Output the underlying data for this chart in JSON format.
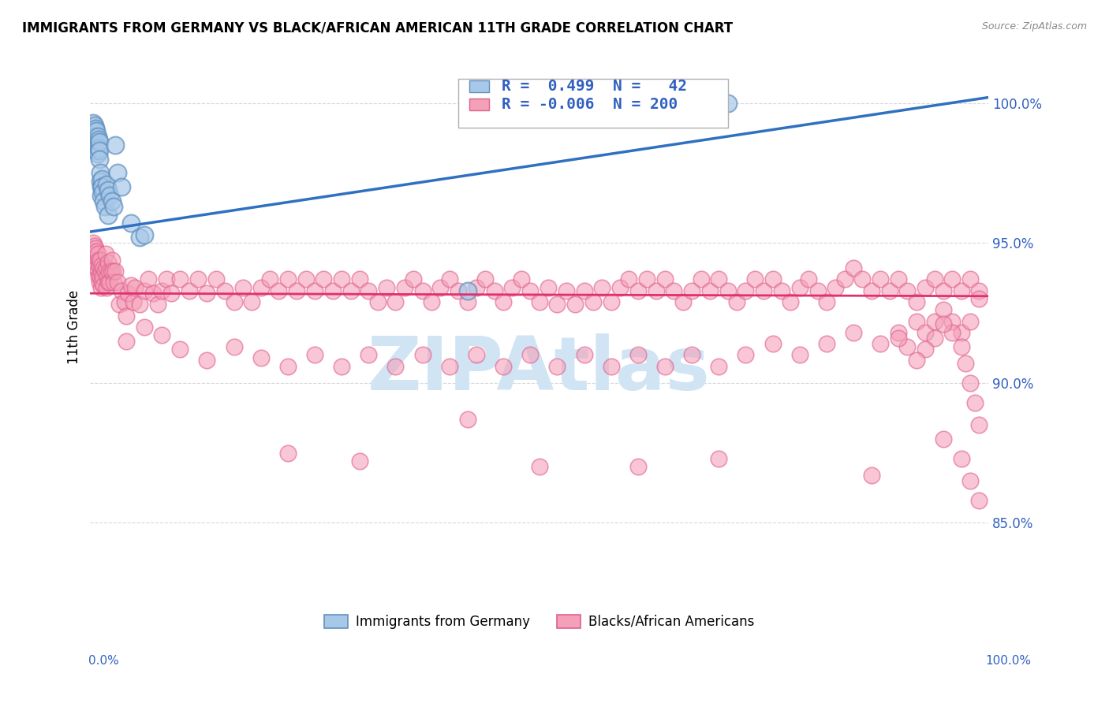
{
  "title": "IMMIGRANTS FROM GERMANY VS BLACK/AFRICAN AMERICAN 11TH GRADE CORRELATION CHART",
  "source": "Source: ZipAtlas.com",
  "ylabel": "11th Grade",
  "ytick_values": [
    0.85,
    0.9,
    0.95,
    1.0
  ],
  "ytick_labels": [
    "85.0%",
    "90.0%",
    "95.0%",
    "100.0%"
  ],
  "legend_blue_label": "Immigrants from Germany",
  "legend_pink_label": "Blacks/African Americans",
  "blue_color": "#a8c8e8",
  "pink_color": "#f4a0b8",
  "blue_edge_color": "#6090c0",
  "pink_edge_color": "#e06090",
  "trendline_blue_color": "#3070c0",
  "trendline_pink_color": "#e03070",
  "watermark_text": "ZIPAtlas",
  "watermark_color": "#d0e4f4",
  "blue_trend_x": [
    0.0,
    1.0
  ],
  "blue_trend_y": [
    0.954,
    1.002
  ],
  "pink_trend_y": [
    0.932,
    0.931
  ],
  "xlim": [
    0.0,
    1.0
  ],
  "ylim": [
    0.825,
    1.015
  ],
  "grid_color": "#d8d8d8",
  "right_label_color": "#3060c0",
  "blue_dots": [
    [
      0.003,
      0.993
    ],
    [
      0.004,
      0.99
    ],
    [
      0.004,
      0.986
    ],
    [
      0.005,
      0.992
    ],
    [
      0.005,
      0.988
    ],
    [
      0.005,
      0.985
    ],
    [
      0.006,
      0.991
    ],
    [
      0.006,
      0.988
    ],
    [
      0.007,
      0.99
    ],
    [
      0.007,
      0.986
    ],
    [
      0.007,
      0.983
    ],
    [
      0.008,
      0.988
    ],
    [
      0.008,
      0.985
    ],
    [
      0.008,
      0.982
    ],
    [
      0.009,
      0.987
    ],
    [
      0.009,
      0.984
    ],
    [
      0.01,
      0.986
    ],
    [
      0.01,
      0.983
    ],
    [
      0.01,
      0.98
    ],
    [
      0.011,
      0.975
    ],
    [
      0.011,
      0.972
    ],
    [
      0.012,
      0.97
    ],
    [
      0.012,
      0.967
    ],
    [
      0.013,
      0.973
    ],
    [
      0.013,
      0.97
    ],
    [
      0.014,
      0.968
    ],
    [
      0.015,
      0.965
    ],
    [
      0.016,
      0.963
    ],
    [
      0.018,
      0.971
    ],
    [
      0.02,
      0.969
    ],
    [
      0.02,
      0.96
    ],
    [
      0.022,
      0.967
    ],
    [
      0.024,
      0.965
    ],
    [
      0.026,
      0.963
    ],
    [
      0.028,
      0.985
    ],
    [
      0.03,
      0.975
    ],
    [
      0.035,
      0.97
    ],
    [
      0.045,
      0.957
    ],
    [
      0.055,
      0.952
    ],
    [
      0.06,
      0.953
    ],
    [
      0.42,
      0.933
    ],
    [
      0.71,
      1.0
    ]
  ],
  "pink_dots": [
    [
      0.003,
      0.95
    ],
    [
      0.004,
      0.946
    ],
    [
      0.005,
      0.949
    ],
    [
      0.005,
      0.944
    ],
    [
      0.006,
      0.948
    ],
    [
      0.006,
      0.942
    ],
    [
      0.007,
      0.947
    ],
    [
      0.007,
      0.941
    ],
    [
      0.008,
      0.946
    ],
    [
      0.008,
      0.94
    ],
    [
      0.009,
      0.944
    ],
    [
      0.009,
      0.938
    ],
    [
      0.01,
      0.942
    ],
    [
      0.01,
      0.936
    ],
    [
      0.011,
      0.944
    ],
    [
      0.011,
      0.938
    ],
    [
      0.012,
      0.94
    ],
    [
      0.012,
      0.934
    ],
    [
      0.013,
      0.942
    ],
    [
      0.013,
      0.936
    ],
    [
      0.014,
      0.938
    ],
    [
      0.015,
      0.941
    ],
    [
      0.015,
      0.935
    ],
    [
      0.016,
      0.94
    ],
    [
      0.017,
      0.946
    ],
    [
      0.018,
      0.941
    ],
    [
      0.018,
      0.934
    ],
    [
      0.019,
      0.938
    ],
    [
      0.02,
      0.943
    ],
    [
      0.02,
      0.936
    ],
    [
      0.021,
      0.94
    ],
    [
      0.022,
      0.936
    ],
    [
      0.023,
      0.94
    ],
    [
      0.024,
      0.944
    ],
    [
      0.025,
      0.94
    ],
    [
      0.026,
      0.936
    ],
    [
      0.028,
      0.94
    ],
    [
      0.03,
      0.936
    ],
    [
      0.032,
      0.928
    ],
    [
      0.035,
      0.933
    ],
    [
      0.038,
      0.929
    ],
    [
      0.04,
      0.924
    ],
    [
      0.042,
      0.932
    ],
    [
      0.045,
      0.935
    ],
    [
      0.048,
      0.929
    ],
    [
      0.05,
      0.934
    ],
    [
      0.055,
      0.928
    ],
    [
      0.06,
      0.933
    ],
    [
      0.065,
      0.937
    ],
    [
      0.07,
      0.932
    ],
    [
      0.075,
      0.928
    ],
    [
      0.08,
      0.933
    ],
    [
      0.085,
      0.937
    ],
    [
      0.09,
      0.932
    ],
    [
      0.1,
      0.937
    ],
    [
      0.11,
      0.933
    ],
    [
      0.12,
      0.937
    ],
    [
      0.13,
      0.932
    ],
    [
      0.14,
      0.937
    ],
    [
      0.15,
      0.933
    ],
    [
      0.16,
      0.929
    ],
    [
      0.17,
      0.934
    ],
    [
      0.18,
      0.929
    ],
    [
      0.19,
      0.934
    ],
    [
      0.2,
      0.937
    ],
    [
      0.21,
      0.933
    ],
    [
      0.22,
      0.937
    ],
    [
      0.23,
      0.933
    ],
    [
      0.24,
      0.937
    ],
    [
      0.25,
      0.933
    ],
    [
      0.26,
      0.937
    ],
    [
      0.27,
      0.933
    ],
    [
      0.28,
      0.937
    ],
    [
      0.29,
      0.933
    ],
    [
      0.3,
      0.937
    ],
    [
      0.31,
      0.933
    ],
    [
      0.32,
      0.929
    ],
    [
      0.33,
      0.934
    ],
    [
      0.34,
      0.929
    ],
    [
      0.35,
      0.934
    ],
    [
      0.36,
      0.937
    ],
    [
      0.37,
      0.933
    ],
    [
      0.38,
      0.929
    ],
    [
      0.39,
      0.934
    ],
    [
      0.4,
      0.937
    ],
    [
      0.41,
      0.933
    ],
    [
      0.42,
      0.929
    ],
    [
      0.43,
      0.934
    ],
    [
      0.44,
      0.937
    ],
    [
      0.45,
      0.933
    ],
    [
      0.46,
      0.929
    ],
    [
      0.47,
      0.934
    ],
    [
      0.48,
      0.937
    ],
    [
      0.49,
      0.933
    ],
    [
      0.5,
      0.929
    ],
    [
      0.51,
      0.934
    ],
    [
      0.52,
      0.928
    ],
    [
      0.53,
      0.933
    ],
    [
      0.54,
      0.928
    ],
    [
      0.55,
      0.933
    ],
    [
      0.56,
      0.929
    ],
    [
      0.57,
      0.934
    ],
    [
      0.58,
      0.929
    ],
    [
      0.59,
      0.934
    ],
    [
      0.6,
      0.937
    ],
    [
      0.61,
      0.933
    ],
    [
      0.62,
      0.937
    ],
    [
      0.63,
      0.933
    ],
    [
      0.64,
      0.937
    ],
    [
      0.65,
      0.933
    ],
    [
      0.66,
      0.929
    ],
    [
      0.67,
      0.933
    ],
    [
      0.68,
      0.937
    ],
    [
      0.69,
      0.933
    ],
    [
      0.7,
      0.937
    ],
    [
      0.71,
      0.933
    ],
    [
      0.72,
      0.929
    ],
    [
      0.73,
      0.933
    ],
    [
      0.74,
      0.937
    ],
    [
      0.75,
      0.933
    ],
    [
      0.76,
      0.937
    ],
    [
      0.77,
      0.933
    ],
    [
      0.78,
      0.929
    ],
    [
      0.79,
      0.934
    ],
    [
      0.8,
      0.937
    ],
    [
      0.81,
      0.933
    ],
    [
      0.82,
      0.929
    ],
    [
      0.83,
      0.934
    ],
    [
      0.84,
      0.937
    ],
    [
      0.85,
      0.941
    ],
    [
      0.86,
      0.937
    ],
    [
      0.87,
      0.933
    ],
    [
      0.88,
      0.937
    ],
    [
      0.89,
      0.933
    ],
    [
      0.9,
      0.937
    ],
    [
      0.91,
      0.933
    ],
    [
      0.92,
      0.929
    ],
    [
      0.93,
      0.934
    ],
    [
      0.94,
      0.937
    ],
    [
      0.95,
      0.933
    ],
    [
      0.96,
      0.937
    ],
    [
      0.97,
      0.933
    ],
    [
      0.98,
      0.937
    ],
    [
      0.99,
      0.933
    ],
    [
      0.04,
      0.915
    ],
    [
      0.06,
      0.92
    ],
    [
      0.08,
      0.917
    ],
    [
      0.1,
      0.912
    ],
    [
      0.13,
      0.908
    ],
    [
      0.16,
      0.913
    ],
    [
      0.19,
      0.909
    ],
    [
      0.22,
      0.906
    ],
    [
      0.25,
      0.91
    ],
    [
      0.28,
      0.906
    ],
    [
      0.31,
      0.91
    ],
    [
      0.34,
      0.906
    ],
    [
      0.37,
      0.91
    ],
    [
      0.4,
      0.906
    ],
    [
      0.43,
      0.91
    ],
    [
      0.46,
      0.906
    ],
    [
      0.49,
      0.91
    ],
    [
      0.52,
      0.906
    ],
    [
      0.55,
      0.91
    ],
    [
      0.58,
      0.906
    ],
    [
      0.61,
      0.91
    ],
    [
      0.64,
      0.906
    ],
    [
      0.67,
      0.91
    ],
    [
      0.7,
      0.906
    ],
    [
      0.73,
      0.91
    ],
    [
      0.76,
      0.914
    ],
    [
      0.79,
      0.91
    ],
    [
      0.82,
      0.914
    ],
    [
      0.85,
      0.918
    ],
    [
      0.88,
      0.914
    ],
    [
      0.9,
      0.918
    ],
    [
      0.92,
      0.922
    ],
    [
      0.93,
      0.918
    ],
    [
      0.94,
      0.922
    ],
    [
      0.95,
      0.926
    ],
    [
      0.96,
      0.922
    ],
    [
      0.97,
      0.918
    ],
    [
      0.98,
      0.922
    ],
    [
      0.99,
      0.93
    ],
    [
      0.22,
      0.875
    ],
    [
      0.3,
      0.872
    ],
    [
      0.42,
      0.887
    ],
    [
      0.5,
      0.87
    ],
    [
      0.61,
      0.87
    ],
    [
      0.7,
      0.873
    ],
    [
      0.87,
      0.867
    ],
    [
      0.95,
      0.88
    ],
    [
      0.97,
      0.873
    ],
    [
      0.98,
      0.865
    ],
    [
      0.99,
      0.858
    ],
    [
      0.99,
      0.885
    ],
    [
      0.985,
      0.893
    ],
    [
      0.98,
      0.9
    ],
    [
      0.975,
      0.907
    ],
    [
      0.97,
      0.913
    ],
    [
      0.96,
      0.918
    ],
    [
      0.95,
      0.921
    ],
    [
      0.94,
      0.916
    ],
    [
      0.93,
      0.912
    ],
    [
      0.92,
      0.908
    ],
    [
      0.91,
      0.913
    ],
    [
      0.9,
      0.916
    ]
  ]
}
